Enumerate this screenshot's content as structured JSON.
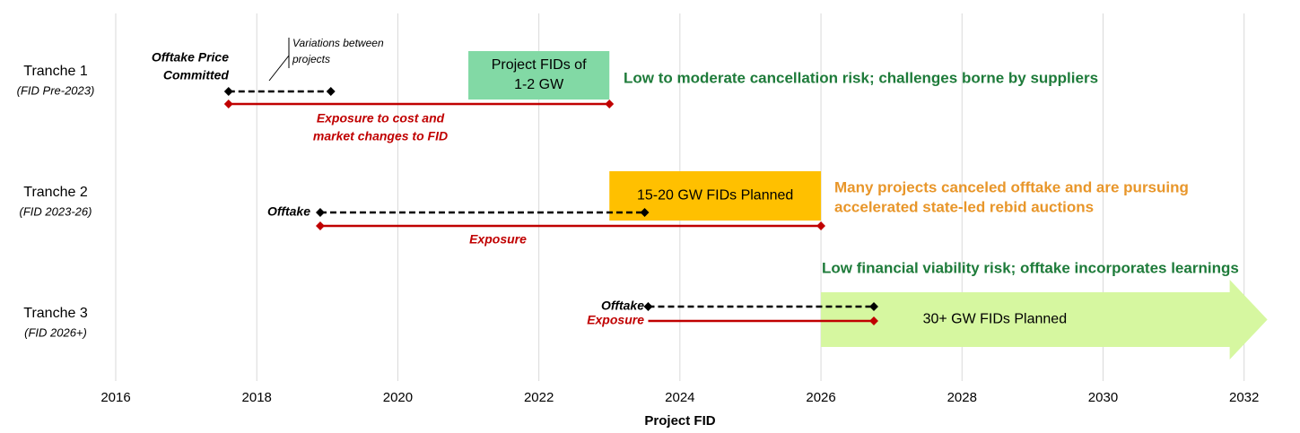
{
  "chart_data": {
    "type": "timeline",
    "xlabel": "Project FID",
    "xlim": [
      2016,
      2032.5
    ],
    "xticks": [
      2016,
      2018,
      2020,
      2022,
      2024,
      2026,
      2028,
      2030,
      2032
    ],
    "grid": true,
    "offtake_color": "#000000",
    "exposure_color": "#c00000",
    "annotation": [
      "Variations between",
      "projects"
    ],
    "rows": [
      {
        "name": "Tranche 1",
        "sublabel": "(FID Pre-2023)",
        "offtake_label": [
          "Offtake Price",
          "Committed"
        ],
        "offtake": [
          2017.6,
          2019.05
        ],
        "exposure_label": [
          "Exposure to cost and",
          "market changes to FID"
        ],
        "exposure": [
          2017.6,
          2023.0
        ],
        "box": {
          "label": [
            "Project FIDs of",
            "1-2 GW"
          ],
          "span": [
            2021.0,
            2023.0
          ],
          "color": "#82d9a5",
          "shape": "rect"
        },
        "note": [
          "Low to moderate cancellation risk; challenges borne by suppliers"
        ],
        "note_color": "#1e7b3a"
      },
      {
        "name": "Tranche 2",
        "sublabel": "(FID 2023-26)",
        "offtake_label": [
          "Offtake"
        ],
        "offtake": [
          2018.9,
          2023.5
        ],
        "exposure_label": [
          "Exposure"
        ],
        "exposure": [
          2018.9,
          2026.0
        ],
        "box": {
          "label": [
            "15-20 GW FIDs Planned"
          ],
          "span": [
            2023.0,
            2026.0
          ],
          "color": "#ffc000",
          "shape": "rect"
        },
        "note": [
          "Many projects canceled offtake and are pursuing",
          "accelerated state-led rebid auctions"
        ],
        "note_color": "#e8962a"
      },
      {
        "name": "Tranche 3",
        "sublabel": "(FID 2026+)",
        "offtake_label": [
          "Offtake"
        ],
        "offtake": [
          2023.55,
          2026.75
        ],
        "exposure_label": [
          "Exposure"
        ],
        "exposure": [
          2023.55,
          2026.75
        ],
        "box": {
          "label": [
            "30+ GW FIDs Planned"
          ],
          "span": [
            2026.0,
            2032.33
          ],
          "color": "#d6f7a0",
          "shape": "arrow"
        },
        "note": [
          "Low financial viability risk; offtake incorporates learnings"
        ],
        "note_color": "#1e7b3a"
      }
    ]
  }
}
